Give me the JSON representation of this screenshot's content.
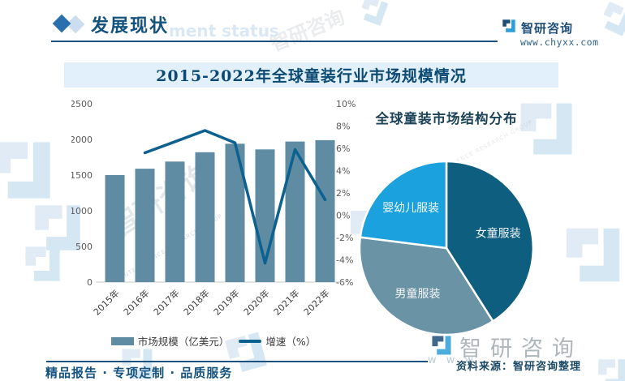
{
  "header": {
    "section_title": "发展现状",
    "watermark_text": "ment status",
    "brand": {
      "name": "智研咨询",
      "url": "www.chyxx.com"
    }
  },
  "chart_data": [
    {
      "type": "bar",
      "title": "2015-2022年全球童装行业市场规模情况",
      "categories": [
        "2015年",
        "2016年",
        "2017年",
        "2018年",
        "2019年",
        "2020年",
        "2021年",
        "2022年"
      ],
      "series": [
        {
          "name": "市场规模（亿美元）",
          "type": "bar",
          "axis": "left",
          "color": "#5f8ca2",
          "values": [
            1500,
            1590,
            1690,
            1820,
            1940,
            1860,
            1970,
            1990
          ]
        },
        {
          "name": "增速（%）",
          "type": "line",
          "axis": "right",
          "color": "#0d6190",
          "values": [
            null,
            5.6,
            6.6,
            7.6,
            6.5,
            -4.3,
            5.9,
            1.4
          ]
        }
      ],
      "left_axis": {
        "min": 0,
        "max": 2500,
        "ticks": [
          "0",
          "500",
          "1000",
          "1500",
          "2000",
          "2500"
        ]
      },
      "right_axis": {
        "min": -6,
        "max": 10,
        "ticks": [
          "-6%",
          "-4%",
          "-2%",
          "0%",
          "2%",
          "4%",
          "6%",
          "8%",
          "10%"
        ]
      },
      "grid": false,
      "legend_position": "bottom"
    },
    {
      "type": "pie",
      "title": "全球童装市场结构分布",
      "start_angle_deg": 0,
      "unit": "%",
      "slices": [
        {
          "label": "女童服装",
          "value": 41,
          "color": "#0e5e80"
        },
        {
          "label": "男童服装",
          "value": 36,
          "color": "#6b93a6"
        },
        {
          "label": "婴幼儿服装",
          "value": 23,
          "color": "#1ba2de"
        }
      ]
    }
  ],
  "footer": {
    "tagline": "精品报告 · 专项定制 · 品质服务",
    "source": "资料来源：智研咨询整理"
  },
  "watermarks": {
    "cn": "智研咨询",
    "en": "INTELLIGENCE RESEARCH GROUP",
    "www": "w w w"
  },
  "colors": {
    "accent": "#1d5180",
    "banner_bg": "#e1f0fa",
    "banner_text": "#0d4a73",
    "logo_dark": "#1f4e79",
    "logo_light": "#2d9fd8",
    "axis_text": "#595959"
  }
}
